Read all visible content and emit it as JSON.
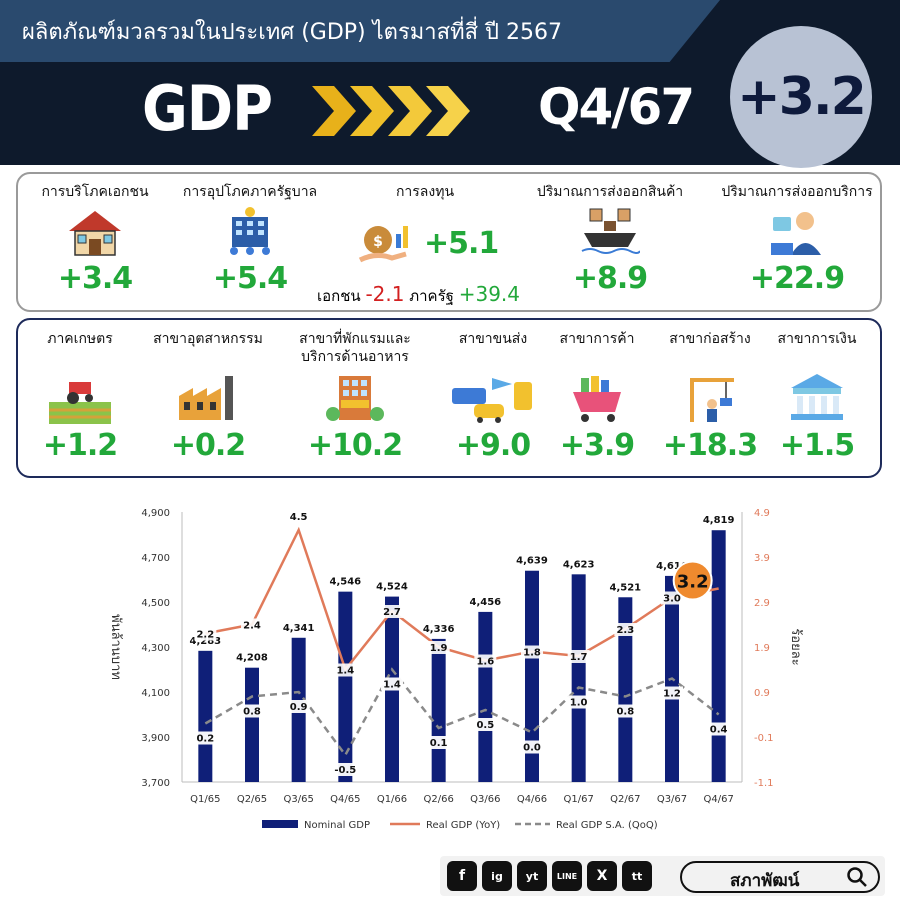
{
  "header": {
    "title": "ผลิตภัณฑ์มวลรวมในประเทศ (GDP) ไตรมาสที่สี่ ปี 2567",
    "gdp_label": "GDP",
    "quarter": "Q4/67",
    "growth": "+3.2"
  },
  "components": [
    {
      "label": "การบริโภคเอกชน",
      "value": "+3.4",
      "icon": "house-icon"
    },
    {
      "label": "การอุปโภคภาครัฐบาล",
      "value": "+5.4",
      "icon": "government-building-icon"
    },
    {
      "label": "การลงทุน",
      "value": "+5.1",
      "icon": "investment-icon",
      "private_label": "เอกชน",
      "private_value": "-2.1",
      "public_label": "ภาครัฐ",
      "public_value": "+39.4"
    },
    {
      "label": "ปริมาณการส่งออกสินค้า",
      "value": "+8.9",
      "icon": "cargo-ship-icon"
    },
    {
      "label": "ปริมาณการส่งออกบริการ",
      "value": "+22.9",
      "icon": "service-worker-icon"
    }
  ],
  "sectors": [
    {
      "label": "ภาคเกษตร",
      "value": "+1.2",
      "icon": "farm-tractor-icon"
    },
    {
      "label": "สาขาอุตสาหกรรม",
      "value": "+0.2",
      "icon": "factory-icon"
    },
    {
      "label": "สาขาที่พักแรมและ",
      "label2": "บริการด้านอาหาร",
      "value": "+10.2",
      "icon": "hotel-icon"
    },
    {
      "label": "สาขาขนส่ง",
      "value": "+9.0",
      "icon": "transport-icon"
    },
    {
      "label": "สาขาการค้า",
      "value": "+3.9",
      "icon": "shopping-cart-icon"
    },
    {
      "label": "สาขาก่อสร้าง",
      "value": "+18.3",
      "icon": "construction-crane-icon"
    },
    {
      "label": "สาขาการเงิน",
      "value": "+1.5",
      "icon": "bank-icon"
    }
  ],
  "chart_data": {
    "type": "bar",
    "categories": [
      "Q1/65",
      "Q2/65",
      "Q3/65",
      "Q4/65",
      "Q1/66",
      "Q2/66",
      "Q3/66",
      "Q4/66",
      "Q1/67",
      "Q2/67",
      "Q3/67",
      "Q4/67"
    ],
    "series": [
      {
        "name": "Nominal GDP",
        "type": "bar",
        "axis": "left",
        "color": "#0f1f78",
        "values": [
          4283,
          4208,
          4341,
          4546,
          4524,
          4336,
          4456,
          4639,
          4623,
          4521,
          4616,
          4819
        ]
      },
      {
        "name": "Real GDP (YoY)",
        "type": "line",
        "axis": "right",
        "color": "#e07a5a",
        "values": [
          2.2,
          2.4,
          4.5,
          1.4,
          2.7,
          1.9,
          1.6,
          1.8,
          1.7,
          2.3,
          3.0,
          3.2
        ]
      },
      {
        "name": "Real GDP S.A. (QoQ)",
        "type": "line",
        "axis": "right",
        "dashed": true,
        "color": "#8a8a8a",
        "values": [
          0.2,
          0.8,
          0.9,
          -0.5,
          1.4,
          0.1,
          0.5,
          0.0,
          1.0,
          0.8,
          1.2,
          0.4
        ]
      }
    ],
    "bar_labels": [
      "4,283",
      "4,208",
      "4,341",
      "4,546",
      "4,524",
      "4,336",
      "4,456",
      "4,639",
      "4,623",
      "4,521",
      "4,616",
      "4,819"
    ],
    "yoy_labels": [
      "2.2",
      "2.4",
      "4.5",
      "1.4",
      "2.7",
      "1.9",
      "1.6",
      "1.8",
      "1.7",
      "2.3",
      "3.0",
      "3.2"
    ],
    "qoq_labels": [
      "0.2",
      "0.8",
      "0.9",
      "-0.5",
      "1.4",
      "0.1",
      "0.5",
      "0.0",
      "1.0",
      "0.8",
      "1.2",
      "0.4"
    ],
    "ylabel": "พันล้านบาท",
    "y2label": "ร้อยละ",
    "ylim": [
      3700,
      4900
    ],
    "y2lim": [
      -1.1,
      4.9
    ],
    "yticks": [
      "3,700",
      "3,900",
      "4,100",
      "4,300",
      "4,500",
      "4,700",
      "4,900"
    ],
    "y2ticks": [
      "-1.1",
      "-0.1",
      "0.9",
      "1.9",
      "2.9",
      "3.9",
      "4.9"
    ],
    "highlight": "3.2",
    "legend": [
      "Nominal GDP",
      "Real GDP (YoY)",
      "Real GDP S.A. (QoQ)"
    ],
    "legend_position": "bottom",
    "grid": false
  },
  "footer": {
    "social": [
      "f",
      "ig",
      "yt",
      "LINE",
      "X",
      "tt"
    ],
    "search_label": "สภาพัฒน์"
  }
}
